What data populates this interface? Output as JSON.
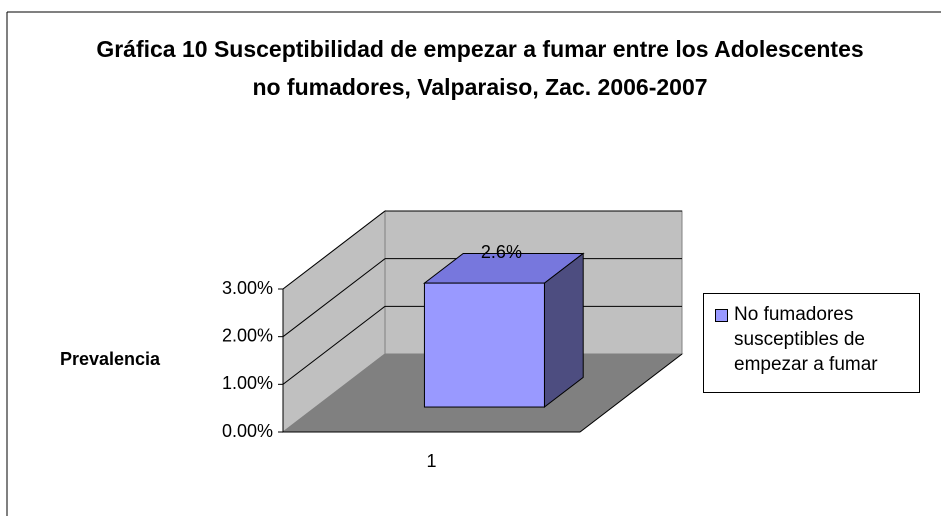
{
  "chart_data": {
    "type": "bar3d",
    "title": "Gráfica 10 Susceptibilidad de empezar a fumar entre los Adolescentes no fumadores, Valparaiso, Zac. 2006-2007",
    "y_label": "Prevalencia",
    "categories": [
      "1"
    ],
    "series": [
      {
        "name": "No fumadores susceptibles de empezar a fumar",
        "color": "#9999ff",
        "values": [
          2.6
        ],
        "value_labels": [
          "2.6%"
        ]
      }
    ],
    "ylim": [
      0,
      3
    ],
    "yticks": [
      {
        "value": 0,
        "label": "0.00%"
      },
      {
        "value": 1,
        "label": "1.00%"
      },
      {
        "value": 2,
        "label": "2.00%"
      },
      {
        "value": 3,
        "label": "3.00%"
      }
    ],
    "grid": true,
    "legend": "right"
  }
}
